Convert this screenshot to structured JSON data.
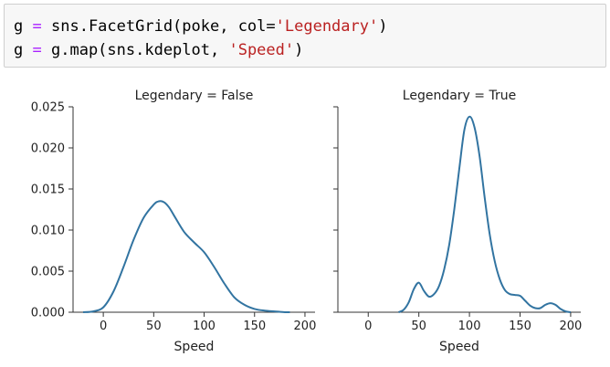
{
  "code": {
    "line1": {
      "var": "g",
      "op": "=",
      "pre": "sns.FacetGrid(poke, col=",
      "arg": "'Legendary'",
      "post": ")"
    },
    "line2": {
      "var": "g",
      "op": "=",
      "pre": "g.map(sns.kdeplot, ",
      "arg": "'Speed'",
      "post": ")"
    }
  },
  "colors": {
    "line": "#3274a1",
    "keyword": "#aa22ff",
    "string": "#ba2121"
  },
  "chart_data": [
    {
      "type": "line",
      "title": "Legendary = False",
      "xlabel": "Speed",
      "ylabel": "",
      "xlim": [
        -30,
        210
      ],
      "ylim": [
        0,
        0.025
      ],
      "xticks": [
        0,
        50,
        100,
        150,
        200
      ],
      "yticks": [
        "0.000",
        "0.005",
        "0.010",
        "0.015",
        "0.020",
        "0.025"
      ],
      "grid": false,
      "x": [
        -20,
        -10,
        0,
        10,
        20,
        30,
        40,
        50,
        55,
        60,
        65,
        70,
        80,
        90,
        100,
        110,
        120,
        130,
        140,
        150,
        160,
        170,
        180,
        185
      ],
      "y": [
        0.0,
        0.0001,
        0.0006,
        0.0025,
        0.0055,
        0.0088,
        0.0115,
        0.0131,
        0.0135,
        0.0134,
        0.0128,
        0.0118,
        0.0098,
        0.0085,
        0.0073,
        0.0055,
        0.0035,
        0.0018,
        0.0009,
        0.0004,
        0.0002,
        0.0001,
        0.0,
        0.0
      ]
    },
    {
      "type": "line",
      "title": "Legendary = True",
      "xlabel": "Speed",
      "ylabel": "",
      "xlim": [
        -30,
        210
      ],
      "ylim": [
        0,
        0.025
      ],
      "xticks": [
        0,
        50,
        100,
        150,
        200
      ],
      "yticks": [],
      "grid": false,
      "x": [
        30,
        35,
        40,
        45,
        50,
        55,
        60,
        65,
        70,
        75,
        80,
        85,
        90,
        95,
        100,
        105,
        110,
        115,
        120,
        125,
        130,
        135,
        140,
        145,
        150,
        155,
        160,
        165,
        170,
        175,
        180,
        185,
        190,
        195,
        200
      ],
      "y": [
        0.0,
        0.0003,
        0.0012,
        0.0028,
        0.0036,
        0.0026,
        0.0019,
        0.0022,
        0.0032,
        0.0052,
        0.0082,
        0.0125,
        0.0175,
        0.0222,
        0.0238,
        0.0225,
        0.019,
        0.014,
        0.0095,
        0.0062,
        0.004,
        0.0027,
        0.0022,
        0.0021,
        0.002,
        0.0014,
        0.0008,
        0.0005,
        0.0005,
        0.0009,
        0.0011,
        0.0009,
        0.0004,
        0.0001,
        0.0
      ]
    }
  ]
}
